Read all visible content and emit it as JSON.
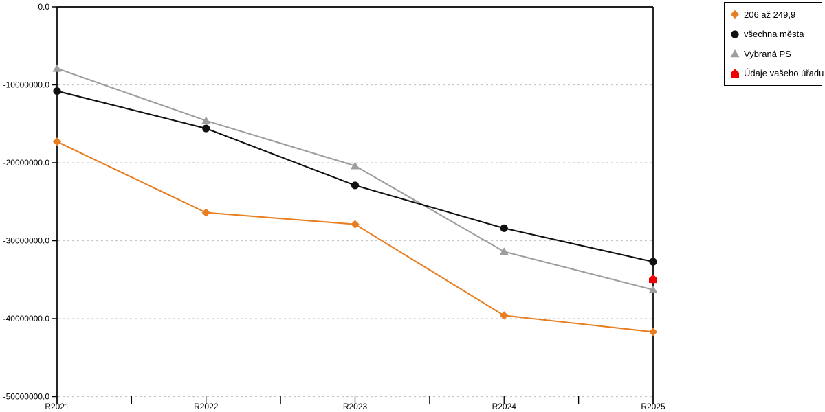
{
  "chart_data": {
    "type": "line",
    "title": "",
    "xlabel": "",
    "ylabel": "",
    "categories": [
      "R2021",
      "R2022",
      "R2023",
      "R2024",
      "R2025"
    ],
    "ylim": [
      -50000000,
      0
    ],
    "ytick_labels": [
      "0.0",
      "-10000000.0",
      "-20000000.0",
      "-30000000.0",
      "-40000000.0",
      "-50000000.0"
    ],
    "ytick_values": [
      0,
      -10000000,
      -20000000,
      -30000000,
      -40000000,
      -50000000
    ],
    "grid": "horizontal-dashed",
    "grid_color": "#c8c8c8",
    "axis_color": "#000000",
    "legend_position": "top-right-outside",
    "series": [
      {
        "id": "206-az-249-9",
        "name": "206 až 249,9",
        "color": "#e87e22",
        "marker": "diamond",
        "values": [
          -17300000,
          -26400000,
          -27900000,
          -39600000,
          -41700000
        ]
      },
      {
        "id": "vybrana-ps",
        "name": "Vybraná PS",
        "color": "#9e9e9e",
        "marker": "triangle",
        "values": [
          -7900000,
          -14600000,
          -20400000,
          -31400000,
          -36300000
        ]
      },
      {
        "id": "vsechna-mesta",
        "name": "všechna města",
        "color": "#111111",
        "marker": "circle",
        "values": [
          -10800000,
          -15600000,
          -22900000,
          -28400000,
          -32700000
        ]
      },
      {
        "id": "udaje-vaseho-uradu",
        "name": "Údaje vašeho úřadu",
        "color": "#f00000",
        "marker": "pentagon",
        "values": [
          null,
          null,
          null,
          null,
          -34900000
        ]
      }
    ],
    "legend_order": [
      "206-az-249-9",
      "vsechna-mesta",
      "vybrana-ps",
      "udaje-vaseho-uradu"
    ]
  }
}
